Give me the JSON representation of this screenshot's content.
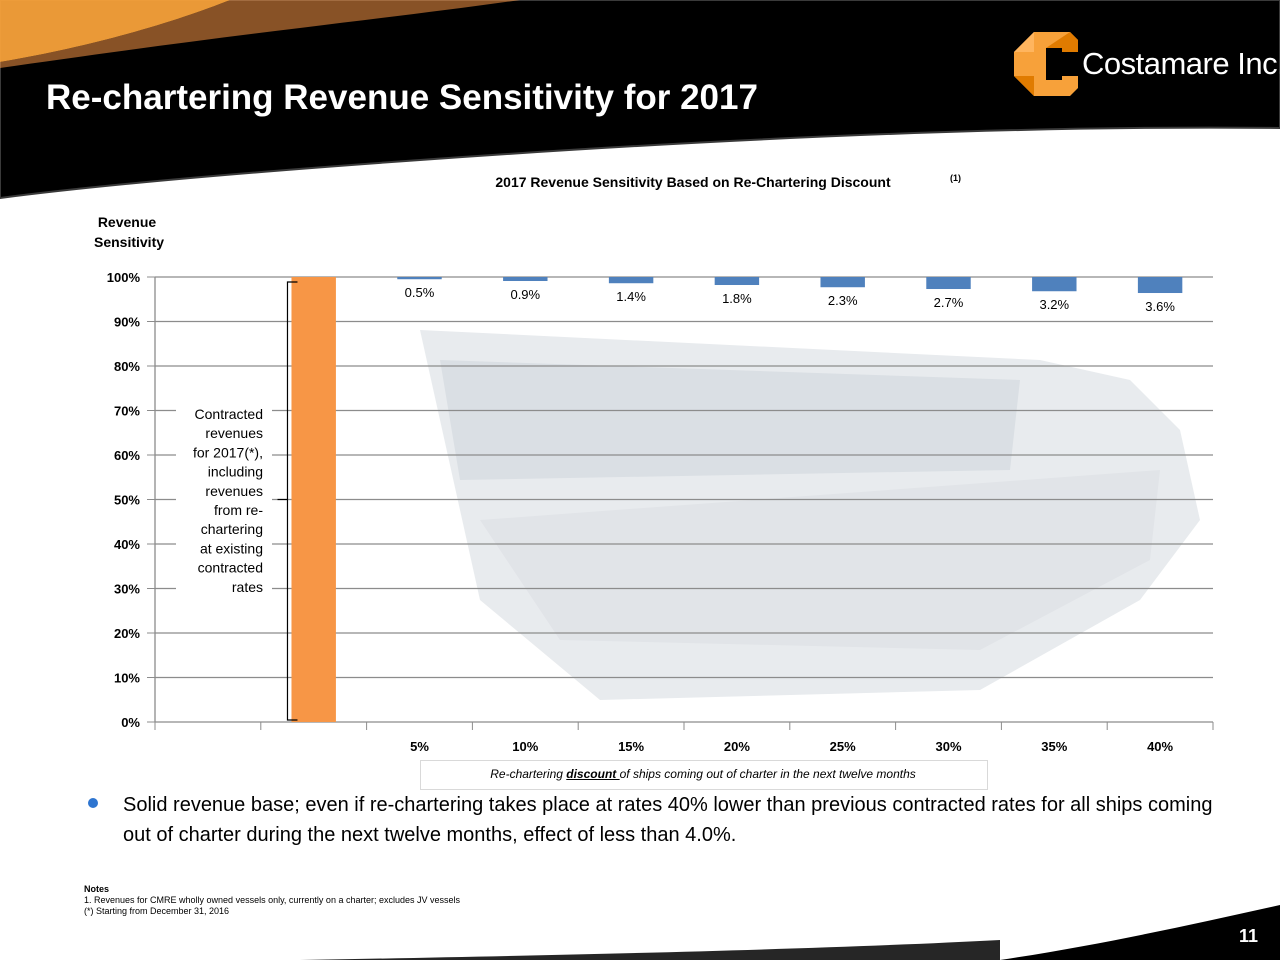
{
  "slide": {
    "title": "Re-chartering Revenue Sensitivity for 2017",
    "page_number": "11",
    "logo_text": "Costamare Inc.",
    "accent_color": "#f7a13a",
    "header_color": "#000000"
  },
  "chart_data": {
    "type": "bar",
    "title": "2017 Revenue Sensitivity Based on Re-Chartering Discount",
    "title_note": "(1)",
    "ylabel": "Revenue Sensitivity",
    "ylabel_lines": [
      "Revenue",
      "Sensitivity"
    ],
    "xlabel_prefix": "Re-chartering ",
    "xlabel_emphasis": "discount ",
    "xlabel_suffix": "of ships coming out of charter in the next twelve months",
    "ylim": [
      0,
      100
    ],
    "yticks": [
      "0%",
      "10%",
      "20%",
      "30%",
      "40%",
      "50%",
      "60%",
      "70%",
      "80%",
      "90%",
      "100%"
    ],
    "grid": true,
    "contracted_bar": {
      "value": 100,
      "color": "#f79646"
    },
    "contracted_label": [
      "Contracted",
      "revenues",
      "for 2017(*),",
      "including",
      "revenues",
      "from re-",
      "chartering",
      "at existing",
      "contracted",
      "rates"
    ],
    "categories": [
      "5%",
      "10%",
      "15%",
      "20%",
      "25%",
      "30%",
      "35%",
      "40%"
    ],
    "values": [
      0.5,
      0.9,
      1.4,
      1.8,
      2.3,
      2.7,
      3.2,
      3.6
    ],
    "data_labels": [
      "0.5%",
      "0.9%",
      "1.4%",
      "1.8%",
      "2.3%",
      "2.7%",
      "3.2%",
      "3.6%"
    ],
    "series_color": "#4f81bd"
  },
  "bullet": {
    "text": "Solid revenue base; even if re-chartering takes place at rates 40% lower than previous contracted rates for all ships coming out of charter during the next twelve months, effect of less than 4.0%."
  },
  "notes": {
    "heading": "Notes",
    "lines": [
      "1.  Revenues for CMRE wholly owned vessels only, currently on a charter; excludes JV vessels",
      "(*) Starting from December 31, 2016"
    ]
  }
}
